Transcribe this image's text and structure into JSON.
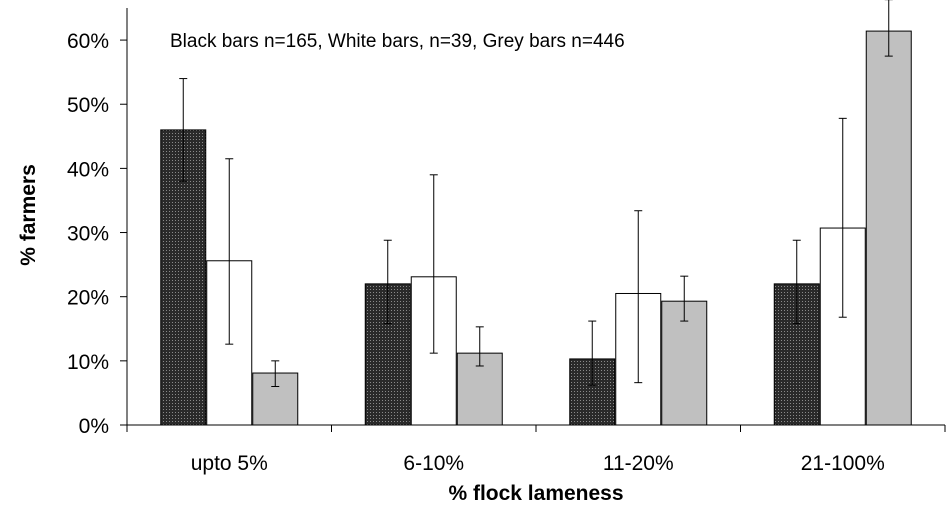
{
  "chart_data": {
    "type": "bar",
    "title": "",
    "xlabel": "% flock lameness",
    "ylabel": "% farmers",
    "annotation": "Black bars n=165, White bars, n=39, Grey bars n=446",
    "categories": [
      "upto 5%",
      "6-10%",
      "11-20%",
      "21-100%"
    ],
    "ylim": [
      0,
      0.65
    ],
    "yticks": [
      0,
      0.1,
      0.2,
      0.3,
      0.4,
      0.5,
      0.6
    ],
    "ytick_labels": [
      "0%",
      "10%",
      "20%",
      "30%",
      "40%",
      "50%",
      "60%"
    ],
    "grid": false,
    "series": [
      {
        "fill": "#3c3c3c",
        "pattern": "dotted-dark",
        "values": [
          0.46,
          0.22,
          0.103,
          0.22
        ],
        "err_low": [
          0.38,
          0.158,
          0.062,
          0.158
        ],
        "err_high": [
          0.54,
          0.288,
          0.162,
          0.288
        ]
      },
      {
        "fill": "#ffffff",
        "values": [
          0.256,
          0.231,
          0.205,
          0.307
        ],
        "err_low": [
          0.126,
          0.112,
          0.066,
          0.168
        ],
        "err_high": [
          0.415,
          0.39,
          0.334,
          0.478
        ]
      },
      {
        "fill": "#c0c0c0",
        "values": [
          0.081,
          0.112,
          0.193,
          0.614
        ],
        "err_low": [
          0.06,
          0.092,
          0.162,
          0.575
        ],
        "err_high": [
          0.1,
          0.153,
          0.232,
          0.663
        ]
      }
    ]
  }
}
